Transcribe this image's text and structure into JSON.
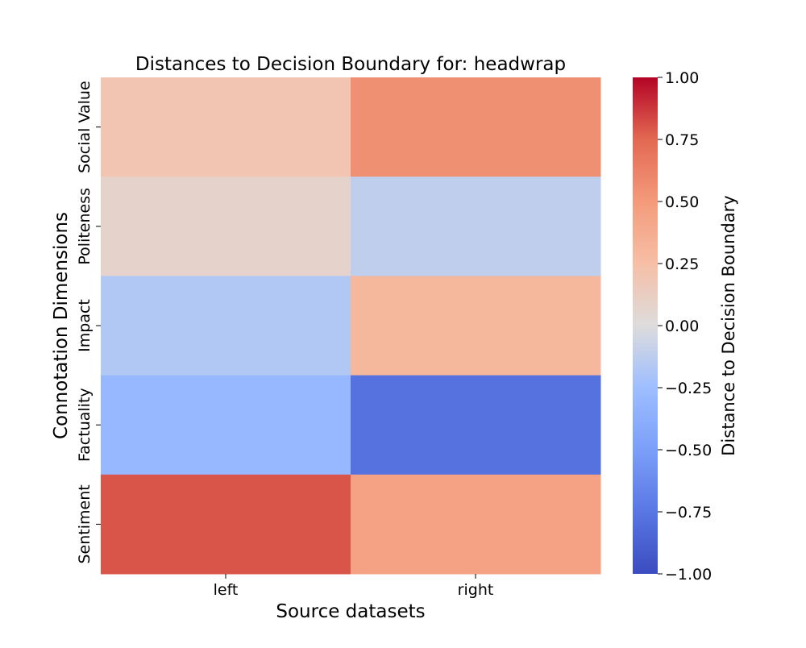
{
  "chart_data": {
    "type": "heatmap",
    "title": "Distances to Decision Boundary for: headwrap",
    "xlabel": "Source datasets",
    "ylabel": "Connotation Dimensions",
    "x": [
      "left",
      "right"
    ],
    "y": [
      "Social Value",
      "Politeness",
      "Impact",
      "Factuality",
      "Sentiment"
    ],
    "values": [
      [
        0.2,
        0.55
      ],
      [
        0.08,
        -0.12
      ],
      [
        -0.17,
        0.3
      ],
      [
        -0.3,
        -0.78
      ],
      [
        0.8,
        0.45
      ]
    ],
    "colorbar": {
      "label": "Distance to Decision Boundary",
      "range": [
        -1.0,
        1.0
      ],
      "ticks": [
        "1.00",
        "0.75",
        "0.50",
        "0.25",
        "0.00",
        "−0.25",
        "−0.50",
        "−0.75",
        "−1.00"
      ],
      "colormap": "coolwarm"
    }
  }
}
